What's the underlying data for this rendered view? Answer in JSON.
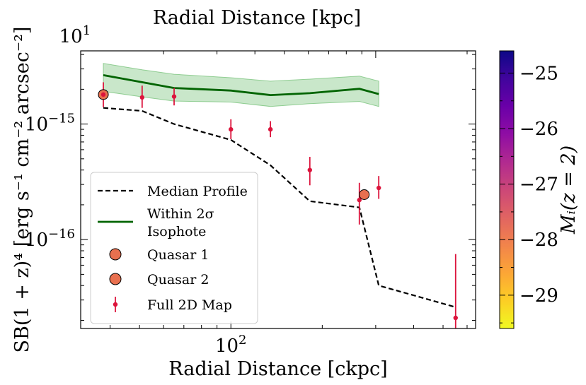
{
  "chart_data": {
    "type": "line",
    "title": "",
    "xlabel_bottom": "Radial Distance [ckpc]",
    "xlabel_top": "Radial Distance [kpc]",
    "ylabel": "SB(1 + z)⁴ [erg s⁻¹ cm⁻² arcsec⁻²]",
    "xscale": "log",
    "yscale": "log",
    "xlim": [
      32,
      640
    ],
    "ylim": [
      1.7e-17,
      4.3e-15
    ],
    "top_xlim": [
      10.67,
      213.3
    ],
    "x_ticks_bottom": [
      {
        "value": 100,
        "label": "10",
        "exp": "2"
      }
    ],
    "x_ticks_top": [
      {
        "value": 10,
        "label": "10",
        "exp": "1"
      }
    ],
    "y_ticks": [
      {
        "value": 1e-15,
        "label": "10",
        "exp": "−15"
      },
      {
        "value": 1e-16,
        "label": "10",
        "exp": "−16"
      }
    ],
    "series": [
      {
        "name": "Median Profile",
        "style": "dashed",
        "color": "#000000",
        "x": [
          38,
          51,
          65,
          100,
          135,
          182,
          265,
          307,
          550
        ],
        "y": [
          1.38e-15,
          1.3e-15,
          1e-15,
          7.3e-16,
          4.4e-16,
          2.15e-16,
          1.9e-16,
          4e-17,
          2.6e-17
        ]
      },
      {
        "name": "Within 2σ Isophote",
        "style": "solid",
        "color": "#006400",
        "band_color": "#4caf50",
        "x": [
          38,
          51,
          65,
          100,
          135,
          182,
          265,
          307
        ],
        "y": [
          2.65e-15,
          2.3e-15,
          2.05e-15,
          1.95e-15,
          1.78e-15,
          1.85e-15,
          2.02e-15,
          1.82e-15
        ],
        "y_low": [
          1.92e-15,
          1.72e-15,
          1.58e-15,
          1.55e-15,
          1.42e-15,
          1.5e-15,
          1.57e-15,
          1.42e-15
        ],
        "y_high": [
          3.35e-15,
          2.95e-15,
          2.7e-15,
          2.52e-15,
          2.35e-15,
          2.45e-15,
          2.6e-15,
          2.35e-15
        ]
      },
      {
        "name": "Full 2D Map",
        "style": "errorbar",
        "color": "#dc143c",
        "x": [
          38,
          51,
          65,
          100,
          135,
          182,
          265,
          307,
          550
        ],
        "y": [
          1.8e-15,
          1.7e-15,
          1.73e-15,
          9e-16,
          9e-16,
          4e-16,
          2.2e-16,
          2.8e-16,
          2.1e-17
        ],
        "y_err_low": [
          1.4e-15,
          1.38e-15,
          1.45e-15,
          7.4e-16,
          7.7e-16,
          2.95e-16,
          1.35e-16,
          2.25e-16,
          1.7e-17
        ],
        "y_err_high": [
          2.3e-15,
          2.15e-15,
          2.05e-15,
          1.1e-15,
          1.06e-15,
          5.2e-16,
          3.1e-16,
          3.55e-16,
          7.5e-17
        ]
      }
    ],
    "quasars": [
      {
        "name": "Quasar 1",
        "x": 38,
        "y": 1.8e-15,
        "color": "#e8704f"
      },
      {
        "name": "Quasar 2",
        "x": 275,
        "y": 2.45e-16,
        "color": "#e8704f"
      }
    ],
    "legend": {
      "placement": "lower-left",
      "entries": [
        {
          "label": "Median Profile"
        },
        {
          "label": "Within 2σ",
          "label2": "Isophote"
        },
        {
          "label": "Quasar 1"
        },
        {
          "label": "Quasar 2"
        },
        {
          "label": "Full 2D Map"
        }
      ]
    },
    "colorbar": {
      "label": "Mᵢ(z = 2)",
      "range": [
        -29.6,
        -24.6
      ],
      "ticks": [
        -25,
        -26,
        -27,
        -28,
        -29
      ],
      "tick_labels": [
        "−25",
        "−26",
        "−27",
        "−28",
        "−29"
      ],
      "colormap": "plasma",
      "stops": [
        "#0d0887",
        "#41049d",
        "#6a00a8",
        "#8f0da4",
        "#b12a90",
        "#cc4778",
        "#e16462",
        "#f2844b",
        "#fca636",
        "#fcce25",
        "#f0f921"
      ]
    }
  }
}
